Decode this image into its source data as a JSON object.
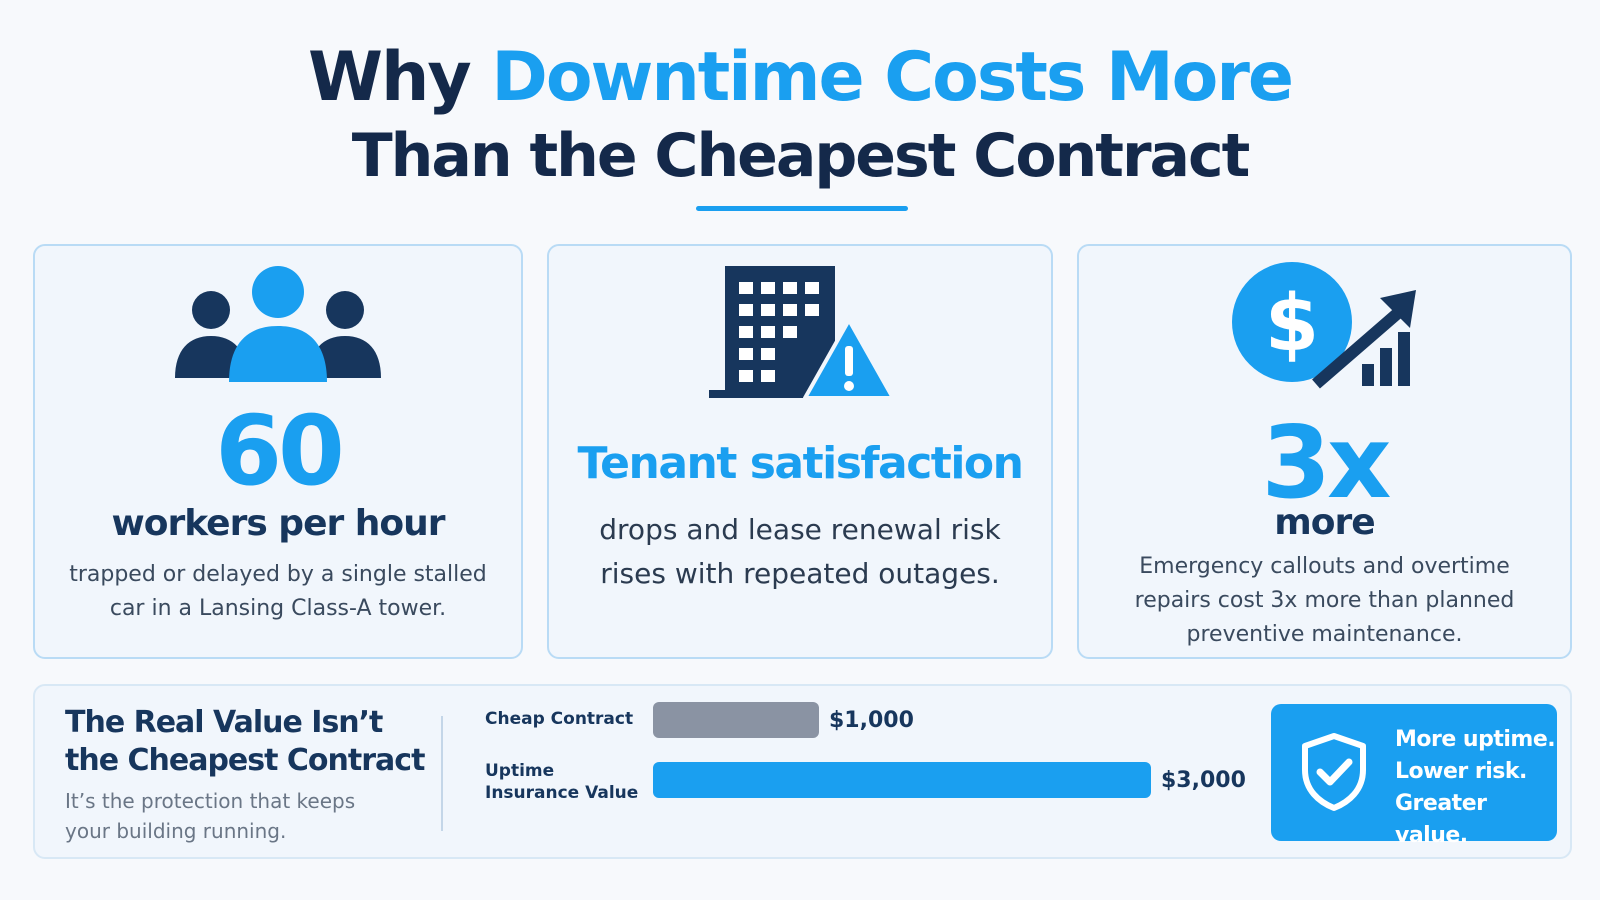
{
  "title": {
    "line1_plain": "Why ",
    "line1_accent": "Downtime Costs More",
    "line2": "Than the Cheapest Contract"
  },
  "cards": [
    {
      "icon": "people-group-icon",
      "big": "60",
      "heading": "workers per hour",
      "body": "trapped or delayed by a single stalled car in a Lansing Class-A tower."
    },
    {
      "icon": "building-warning-icon",
      "heading": "Tenant satisfaction",
      "body": "drops and lease renewal risk rises with repeated outages."
    },
    {
      "icon": "dollar-growth-icon",
      "big": "3x",
      "heading": "more",
      "body": "Emergency callouts and overtime repairs cost 3x more than planned preventive maintenance."
    }
  ],
  "bottom": {
    "title": "The Real Value Isn’t the Cheapest Contract",
    "subtitle": "It’s the protection that keeps your building running.",
    "promo_icon": "shield-check-icon",
    "promo_lines": [
      "More uptime.",
      "Lower risk.",
      "Greater value."
    ]
  },
  "chart_data": {
    "type": "bar",
    "orientation": "horizontal",
    "categories": [
      "Cheap Contract",
      "Uptime Insurance Value"
    ],
    "values": [
      1000,
      3000
    ],
    "value_labels": [
      "$1,000",
      "$3,000"
    ],
    "colors": [
      "#8a93a3",
      "#1a9ff0"
    ],
    "xlim": [
      0,
      3000
    ]
  },
  "colors": {
    "accent": "#1a9ff0",
    "navy": "#17365d",
    "gray_bar": "#8a93a3"
  }
}
